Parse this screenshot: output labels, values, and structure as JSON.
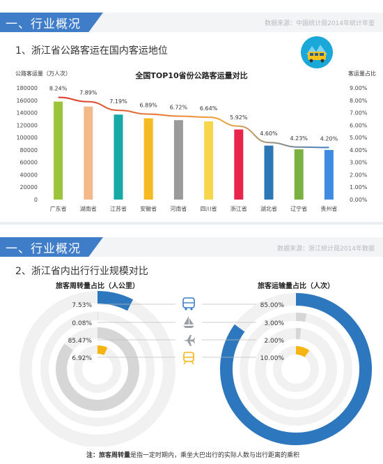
{
  "section1": {
    "header": "一、行业概况",
    "source": "数据来源：中国统计局2014年统计年鉴",
    "subtitle": "1、浙江省公路客运在国内客运地位"
  },
  "section2": {
    "header": "一、行业概况",
    "source": "数据来源：浙江统计局2014年数据",
    "subtitle": "2、浙江省内出行行业规模对比"
  },
  "chart_data": [
    {
      "type": "bar",
      "title": "全国TOP10省份公路客运量对比",
      "ylabel": "公路客运量（万人次）",
      "y2label": "客运量占比",
      "categories": [
        "广东省",
        "湖南省",
        "江苏省",
        "安徽省",
        "河南省",
        "四川省",
        "浙江省",
        "湖北省",
        "辽宁省",
        "贵州省"
      ],
      "series": [
        {
          "values": [
            158000,
            150000,
            137000,
            131000,
            128000,
            126000,
            113000,
            87000,
            81000,
            80000
          ],
          "colors": [
            "#9cc43a",
            "#f4b98b",
            "#17a9a6",
            "#f5b922",
            "#9a9a9a",
            "#f8d64b",
            "#e8264d",
            "#2c77b6",
            "#7bb043",
            "#3f8be0"
          ]
        },
        {
          "values": [
            8.24,
            7.89,
            7.19,
            6.89,
            6.72,
            6.64,
            5.92,
            4.6,
            4.23,
            4.2
          ],
          "labels": [
            "8.24%",
            "7.89%",
            "7.19%",
            "6.89%",
            "6.72%",
            "6.64%",
            "5.92%",
            "4.60%",
            "4.23%",
            "4.20%"
          ],
          "axis": "right"
        }
      ],
      "ylim": [
        0,
        180000
      ],
      "y2lim": [
        0,
        9
      ],
      "yticks": [
        "0",
        "20000",
        "40000",
        "60000",
        "80000",
        "100000",
        "120000",
        "140000",
        "160000",
        "180000"
      ],
      "y2ticks": [
        "0.00%",
        "1.00%",
        "2.00%",
        "3.00%",
        "4.00%",
        "5.00%",
        "6.00%",
        "7.00%",
        "8.00%",
        "9.00%"
      ]
    },
    {
      "type": "pie",
      "title": "旅客周转量占比（人公里）",
      "categories": [
        "bus",
        "ship",
        "plane",
        "train"
      ],
      "values": [
        7.53,
        0.08,
        85.47,
        6.92
      ],
      "labels": [
        "7.53%",
        "0.08%",
        "85.47%",
        "6.92%"
      ],
      "colors": [
        "#2c77bd",
        "#d6d6d6",
        "#d6d6d6",
        "#f5b40f"
      ]
    },
    {
      "type": "pie",
      "title": "旅客运输量占比（人次）",
      "categories": [
        "bus",
        "ship",
        "plane",
        "train"
      ],
      "values": [
        85.0,
        3.0,
        2.0,
        10.0
      ],
      "labels": [
        "85.00%",
        "3.00%",
        "2.00%",
        "10.00%"
      ],
      "colors": [
        "#2c77bd",
        "#d6d6d6",
        "#d6d6d6",
        "#f5b40f"
      ]
    }
  ],
  "icons": {
    "bus_color": "#3a7ec9",
    "ship_color": "#9aa0a6",
    "plane_color": "#9aa0a6",
    "train_color": "#f5b40f"
  },
  "footnote": {
    "term": "注：旅客周转量",
    "text": "是指一定时期内，乘坐大巴出行的实际人数与出行距离的乘积"
  }
}
